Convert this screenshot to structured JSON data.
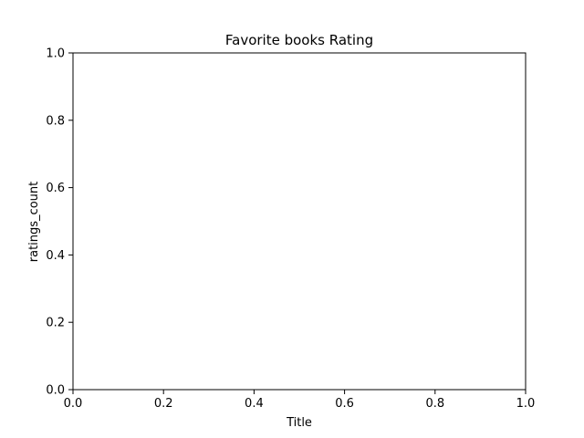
{
  "chart_data": {
    "type": "bar",
    "title": "Favorite books Rating",
    "xlabel": "Title",
    "ylabel": "ratings_count",
    "categories": [],
    "values": [],
    "xlim": [
      0.0,
      1.0
    ],
    "ylim": [
      0.0,
      1.0
    ],
    "xticks": [
      "0.0",
      "0.2",
      "0.4",
      "0.6",
      "0.8",
      "1.0"
    ],
    "yticks": [
      "0.0",
      "0.2",
      "0.4",
      "0.6",
      "0.8",
      "1.0"
    ],
    "grid": false,
    "legend": null
  }
}
